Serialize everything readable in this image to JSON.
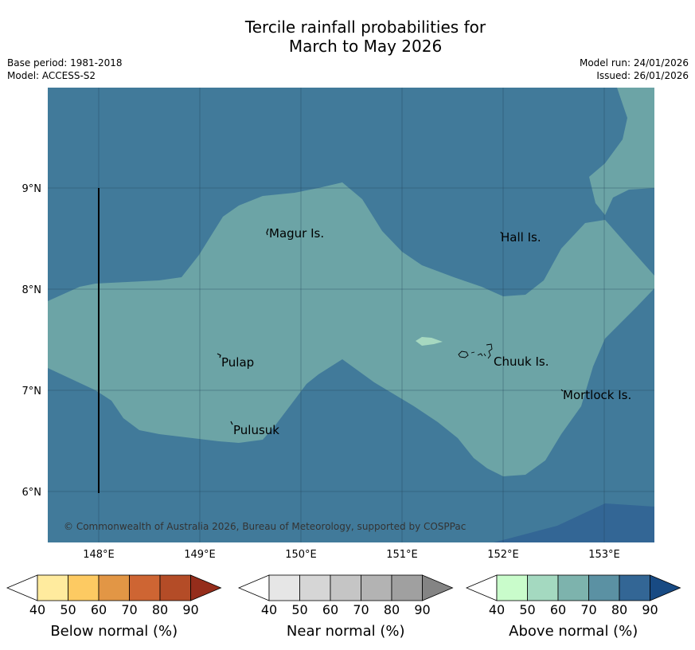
{
  "title": {
    "line1": "Tercile rainfall probabilities for",
    "line2": "March to May 2026"
  },
  "meta": {
    "base_period": "Base period: 1981-2018",
    "model": "Model: ACCESS-S2",
    "model_run": "Model run: 24/01/2026",
    "issued": "Issued: 26/01/2026"
  },
  "map": {
    "lat_labels": [
      "9°N",
      "8°N",
      "7°N",
      "6°N"
    ],
    "lon_labels": [
      "148°E",
      "149°E",
      "150°E",
      "151°E",
      "152°E",
      "153°E"
    ],
    "places": [
      "Magur Is.",
      "Hall Is.",
      "Pulap",
      "Chuuk Is.",
      "Mortlock Is.",
      "Pulusuk"
    ],
    "credit": "© Commonwealth of Australia 2026, Bureau of Meteorology, supported by COSPPac",
    "colors": {
      "above_70": "#6ca4a6",
      "above_80": "#417a9a",
      "above_90": "#336695",
      "above_60": "#a6d8c0"
    }
  },
  "colorbars": [
    {
      "title": "Below normal (%)",
      "ticks": [
        "40",
        "50",
        "60",
        "70",
        "80",
        "90"
      ],
      "colors": [
        "#ffffff",
        "#ffeb9e",
        "#fdca62",
        "#e29645",
        "#ce6533",
        "#b44c27",
        "#952d1b"
      ]
    },
    {
      "title": "Near normal (%)",
      "ticks": [
        "40",
        "50",
        "60",
        "70",
        "80",
        "90"
      ],
      "colors": [
        "#ffffff",
        "#e6e6e6",
        "#d6d6d6",
        "#c5c5c5",
        "#b3b3b3",
        "#a0a0a0",
        "#848484"
      ]
    },
    {
      "title": "Above normal (%)",
      "ticks": [
        "40",
        "50",
        "60",
        "70",
        "80",
        "90"
      ],
      "colors": [
        "#ffffff",
        "#c9fccb",
        "#a4d9c0",
        "#7db3ad",
        "#5b91a3",
        "#336695",
        "#184a83"
      ]
    }
  ]
}
